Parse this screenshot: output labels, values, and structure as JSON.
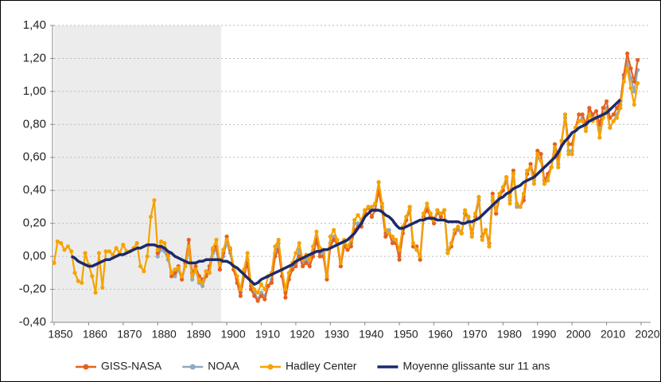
{
  "chart_data": {
    "type": "line",
    "x": [
      1850,
      1851,
      1852,
      1853,
      1854,
      1855,
      1856,
      1857,
      1858,
      1859,
      1860,
      1861,
      1862,
      1863,
      1864,
      1865,
      1866,
      1867,
      1868,
      1869,
      1870,
      1871,
      1872,
      1873,
      1874,
      1875,
      1876,
      1877,
      1878,
      1879,
      1880,
      1881,
      1882,
      1883,
      1884,
      1885,
      1886,
      1887,
      1888,
      1889,
      1890,
      1891,
      1892,
      1893,
      1894,
      1895,
      1896,
      1897,
      1898,
      1899,
      1900,
      1901,
      1902,
      1903,
      1904,
      1905,
      1906,
      1907,
      1908,
      1909,
      1910,
      1911,
      1912,
      1913,
      1914,
      1915,
      1916,
      1917,
      1918,
      1919,
      1920,
      1921,
      1922,
      1923,
      1924,
      1925,
      1926,
      1927,
      1928,
      1929,
      1930,
      1931,
      1932,
      1933,
      1934,
      1935,
      1936,
      1937,
      1938,
      1939,
      1940,
      1941,
      1942,
      1943,
      1944,
      1945,
      1946,
      1947,
      1948,
      1949,
      1950,
      1951,
      1952,
      1953,
      1954,
      1955,
      1956,
      1957,
      1958,
      1959,
      1960,
      1961,
      1962,
      1963,
      1964,
      1965,
      1966,
      1967,
      1968,
      1969,
      1970,
      1971,
      1972,
      1973,
      1974,
      1975,
      1976,
      1977,
      1978,
      1979,
      1980,
      1981,
      1982,
      1983,
      1984,
      1985,
      1986,
      1987,
      1988,
      1989,
      1990,
      1991,
      1992,
      1993,
      1994,
      1995,
      1996,
      1997,
      1998,
      1999,
      2000,
      2001,
      2002,
      2003,
      2004,
      2005,
      2006,
      2007,
      2008,
      2009,
      2010,
      2011,
      2012,
      2013,
      2014,
      2015,
      2016,
      2017,
      2018,
      2019
    ],
    "series": [
      {
        "name": "GISS-NASA",
        "color": "#e8601c",
        "values": [
          null,
          null,
          null,
          null,
          null,
          null,
          null,
          null,
          null,
          null,
          null,
          null,
          null,
          null,
          null,
          null,
          null,
          null,
          null,
          null,
          null,
          null,
          null,
          null,
          null,
          null,
          null,
          null,
          null,
          null,
          0.02,
          0.06,
          0.05,
          0.01,
          -0.12,
          -0.1,
          -0.06,
          -0.14,
          -0.04,
          0.1,
          -0.1,
          -0.06,
          -0.12,
          -0.14,
          -0.12,
          -0.06,
          0.04,
          0.06,
          -0.08,
          0.02,
          0.12,
          0.04,
          -0.08,
          -0.16,
          -0.24,
          -0.12,
          -0.04,
          -0.2,
          -0.24,
          -0.27,
          -0.24,
          -0.26,
          -0.18,
          -0.16,
          0.0,
          0.04,
          -0.12,
          -0.25,
          -0.14,
          -0.08,
          -0.06,
          0.0,
          -0.06,
          -0.04,
          -0.06,
          0.0,
          0.1,
          0.0,
          0.0,
          -0.14,
          0.06,
          0.1,
          0.08,
          -0.06,
          0.06,
          0.04,
          0.06,
          0.16,
          0.18,
          0.18,
          0.26,
          0.3,
          0.24,
          0.28,
          0.4,
          0.28,
          0.12,
          0.14,
          0.08,
          0.08,
          -0.02,
          0.14,
          0.22,
          0.3,
          0.06,
          0.06,
          -0.02,
          0.24,
          0.28,
          0.24,
          0.2,
          0.28,
          0.24,
          0.28,
          0.02,
          0.06,
          0.14,
          0.18,
          0.14,
          0.26,
          0.24,
          0.14,
          0.24,
          0.36,
          0.12,
          0.16,
          0.08,
          0.38,
          0.26,
          0.36,
          0.4,
          0.48,
          0.36,
          0.52,
          0.32,
          0.3,
          0.34,
          0.5,
          0.56,
          0.48,
          0.64,
          0.62,
          0.46,
          0.5,
          0.54,
          0.68,
          0.6,
          0.7,
          0.86,
          0.68,
          0.68,
          0.78,
          0.86,
          0.86,
          0.8,
          0.9,
          0.86,
          0.88,
          0.8,
          0.9,
          0.94,
          0.84,
          0.86,
          0.9,
          0.94,
          1.1,
          1.23,
          1.14,
          1.06,
          1.19
        ]
      },
      {
        "name": "NOAA",
        "color": "#8fa9c2",
        "values": [
          null,
          null,
          null,
          null,
          null,
          null,
          null,
          null,
          null,
          null,
          null,
          null,
          null,
          null,
          null,
          null,
          null,
          null,
          null,
          null,
          null,
          null,
          null,
          null,
          null,
          null,
          null,
          null,
          null,
          null,
          0.0,
          0.04,
          0.03,
          -0.02,
          -0.1,
          -0.12,
          -0.08,
          -0.14,
          -0.06,
          0.04,
          -0.14,
          -0.08,
          -0.16,
          -0.18,
          -0.12,
          -0.1,
          0.02,
          0.04,
          -0.08,
          0.0,
          0.08,
          0.02,
          -0.08,
          -0.14,
          -0.22,
          -0.1,
          -0.02,
          -0.18,
          -0.22,
          -0.26,
          -0.22,
          -0.24,
          -0.18,
          -0.14,
          0.02,
          0.08,
          -0.08,
          -0.22,
          -0.14,
          -0.06,
          -0.04,
          0.04,
          -0.04,
          -0.02,
          -0.04,
          0.02,
          0.12,
          0.02,
          0.02,
          -0.12,
          0.08,
          0.12,
          0.08,
          -0.06,
          0.08,
          0.04,
          0.08,
          0.2,
          0.2,
          0.2,
          0.28,
          0.3,
          0.28,
          0.32,
          0.45,
          0.3,
          0.14,
          0.16,
          0.1,
          0.08,
          0.0,
          0.16,
          0.22,
          0.28,
          0.06,
          0.04,
          0.0,
          0.24,
          0.3,
          0.26,
          0.22,
          0.26,
          0.26,
          0.28,
          0.04,
          0.06,
          0.14,
          0.16,
          0.14,
          0.26,
          0.22,
          0.12,
          0.24,
          0.34,
          0.12,
          0.16,
          0.06,
          0.34,
          0.26,
          0.36,
          0.4,
          0.46,
          0.34,
          0.5,
          0.3,
          0.3,
          0.36,
          0.5,
          0.54,
          0.46,
          0.6,
          0.58,
          0.44,
          0.48,
          0.54,
          0.64,
          0.56,
          0.7,
          0.84,
          0.64,
          0.64,
          0.78,
          0.82,
          0.84,
          0.78,
          0.88,
          0.84,
          0.84,
          0.76,
          0.86,
          0.9,
          0.78,
          0.82,
          0.86,
          0.92,
          1.08,
          1.18,
          1.08,
          1.0,
          1.13
        ]
      },
      {
        "name": "Hadley Center",
        "color": "#f5a300",
        "values": [
          -0.04,
          0.09,
          0.08,
          0.04,
          0.06,
          0.03,
          -0.1,
          -0.15,
          -0.16,
          0.02,
          -0.05,
          -0.12,
          -0.22,
          0.02,
          -0.19,
          0.03,
          0.03,
          0.01,
          0.05,
          0.02,
          0.07,
          0.03,
          0.03,
          0.05,
          0.08,
          -0.06,
          -0.09,
          0.0,
          0.24,
          0.34,
          0.04,
          0.09,
          0.08,
          0.0,
          -0.1,
          -0.08,
          -0.07,
          -0.12,
          -0.06,
          0.06,
          -0.12,
          -0.08,
          -0.15,
          -0.16,
          -0.09,
          -0.1,
          0.05,
          0.1,
          -0.05,
          0.04,
          0.1,
          0.05,
          -0.06,
          -0.12,
          -0.2,
          -0.08,
          0.02,
          -0.16,
          -0.2,
          -0.22,
          -0.17,
          -0.2,
          -0.12,
          -0.1,
          0.06,
          0.1,
          -0.08,
          -0.2,
          -0.1,
          -0.04,
          0.02,
          0.08,
          -0.02,
          0.01,
          -0.02,
          0.06,
          0.15,
          0.05,
          0.04,
          -0.12,
          0.12,
          0.16,
          0.1,
          -0.04,
          0.1,
          0.06,
          0.1,
          0.22,
          0.25,
          0.22,
          0.28,
          0.3,
          0.3,
          0.32,
          0.45,
          0.32,
          0.16,
          0.14,
          0.12,
          0.1,
          0.04,
          0.18,
          0.24,
          0.3,
          0.08,
          0.04,
          0.0,
          0.26,
          0.32,
          0.26,
          0.22,
          0.28,
          0.26,
          0.28,
          0.02,
          0.08,
          0.16,
          0.18,
          0.14,
          0.28,
          0.24,
          0.12,
          0.26,
          0.36,
          0.1,
          0.16,
          0.06,
          0.36,
          0.28,
          0.38,
          0.42,
          0.48,
          0.32,
          0.5,
          0.32,
          0.3,
          0.38,
          0.52,
          0.54,
          0.44,
          0.62,
          0.58,
          0.44,
          0.46,
          0.54,
          0.66,
          0.54,
          0.7,
          0.86,
          0.62,
          0.62,
          0.78,
          0.82,
          0.82,
          0.76,
          0.86,
          0.82,
          0.84,
          0.72,
          0.84,
          0.88,
          0.78,
          0.82,
          0.84,
          0.9,
          1.06,
          1.14,
          1.02,
          0.92,
          1.05
        ]
      },
      {
        "name": "Moyenne glissante sur 11 ans",
        "color": "#1c2a6b",
        "values": [
          null,
          null,
          null,
          null,
          null,
          0.0,
          -0.01,
          -0.03,
          -0.04,
          -0.05,
          -0.06,
          -0.06,
          -0.05,
          -0.04,
          -0.03,
          -0.02,
          -0.02,
          -0.01,
          0.0,
          0.01,
          0.01,
          0.02,
          0.03,
          0.04,
          0.05,
          0.05,
          0.06,
          0.07,
          0.07,
          0.07,
          0.06,
          0.06,
          0.05,
          0.03,
          0.02,
          0.0,
          -0.01,
          -0.02,
          -0.03,
          -0.04,
          -0.04,
          -0.04,
          -0.03,
          -0.03,
          -0.02,
          -0.02,
          -0.02,
          -0.02,
          -0.02,
          -0.03,
          -0.03,
          -0.04,
          -0.06,
          -0.07,
          -0.09,
          -0.11,
          -0.13,
          -0.15,
          -0.17,
          -0.16,
          -0.14,
          -0.13,
          -0.12,
          -0.11,
          -0.1,
          -0.09,
          -0.08,
          -0.07,
          -0.06,
          -0.05,
          -0.03,
          -0.02,
          -0.01,
          0.0,
          0.01,
          0.02,
          0.03,
          0.03,
          0.04,
          0.04,
          0.05,
          0.06,
          0.07,
          0.08,
          0.09,
          0.1,
          0.12,
          0.14,
          0.17,
          0.2,
          0.24,
          0.26,
          0.28,
          0.28,
          0.28,
          0.27,
          0.25,
          0.24,
          0.22,
          0.19,
          0.17,
          0.17,
          0.18,
          0.19,
          0.2,
          0.21,
          0.22,
          0.22,
          0.23,
          0.23,
          0.23,
          0.22,
          0.22,
          0.22,
          0.21,
          0.21,
          0.21,
          0.21,
          0.2,
          0.2,
          0.21,
          0.21,
          0.22,
          0.23,
          0.25,
          0.27,
          0.29,
          0.31,
          0.33,
          0.35,
          0.36,
          0.38,
          0.39,
          0.41,
          0.42,
          0.43,
          0.45,
          0.46,
          0.47,
          0.48,
          0.5,
          0.52,
          0.54,
          0.56,
          0.58,
          0.6,
          0.63,
          0.67,
          0.7,
          0.72,
          0.75,
          0.76,
          0.78,
          0.79,
          0.8,
          0.82,
          0.83,
          0.84,
          0.85,
          0.86,
          0.87,
          0.89,
          0.91,
          0.93,
          0.95,
          null,
          null,
          null,
          null,
          null
        ]
      }
    ],
    "xlim": [
      1850,
      2020
    ],
    "xticks": [
      1850,
      1860,
      1870,
      1880,
      1890,
      1900,
      1910,
      1920,
      1930,
      1940,
      1950,
      1960,
      1970,
      1980,
      1990,
      2000,
      2010,
      2020
    ],
    "ylim": [
      -0.4,
      1.4
    ],
    "yticks": [
      {
        "value": -0.4,
        "label": "-0,40"
      },
      {
        "value": -0.2,
        "label": "-0,20"
      },
      {
        "value": 0,
        "label": "0,00"
      },
      {
        "value": 0.2,
        "label": "0,20"
      },
      {
        "value": 0.4,
        "label": "0,40"
      },
      {
        "value": 0.6,
        "label": "0,60"
      },
      {
        "value": 0.8,
        "label": "0,80"
      },
      {
        "value": 1.0,
        "label": "1,00"
      },
      {
        "value": 1.2,
        "label": "1,20"
      },
      {
        "value": 1.4,
        "label": "1,40"
      }
    ],
    "grid": true,
    "legend": "bottom"
  }
}
